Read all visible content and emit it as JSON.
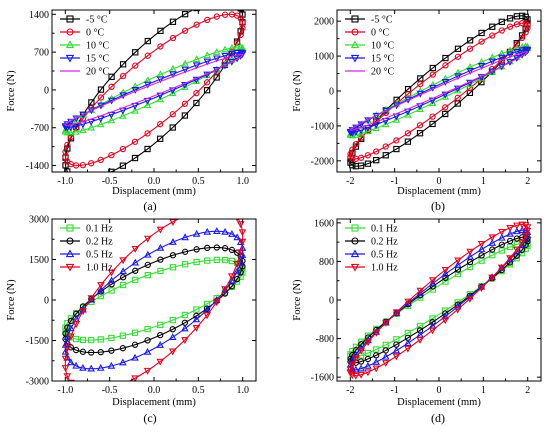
{
  "chart_data": [
    {
      "panel": "a",
      "caption": "(a)",
      "type": "line",
      "xlabel": "Displacement (mm)",
      "ylabel": "Force (N)",
      "xlim": [
        -1.15,
        1.15
      ],
      "ylim": [
        -1520,
        1480
      ],
      "xticks": [
        -1.0,
        -0.5,
        0.0,
        0.5,
        1.0
      ],
      "xtick_labels": [
        "-1.0",
        "-0.5",
        "0.0",
        "0.5",
        "1.0"
      ],
      "yticks": [
        -1400,
        -700,
        0,
        700,
        1400
      ],
      "ytick_labels": [
        "-1400",
        "-700",
        "0",
        "700",
        "1400"
      ],
      "grid": false,
      "legend": "top-left",
      "series": [
        {
          "name": "-5 °C",
          "color": "#000000",
          "marker": "square",
          "amplitude": 1.0,
          "peak_force": 1330,
          "width_force": 1000
        },
        {
          "name": "0 °C",
          "color": "#e8001c",
          "marker": "circle",
          "amplitude": 1.0,
          "peak_force": 1200,
          "width_force": 720
        },
        {
          "name": "10 °C",
          "color": "#33dd33",
          "marker": "triangle-up",
          "amplitude": 1.0,
          "peak_force": 760,
          "width_force": 230
        },
        {
          "name": "15 °C",
          "color": "#1a1aee",
          "marker": "triangle-down",
          "amplitude": 1.0,
          "peak_force": 680,
          "width_force": 150
        },
        {
          "name": "20 °C",
          "color": "#dd22dd",
          "marker": "line",
          "amplitude": 1.0,
          "peak_force": 650,
          "width_force": 110
        }
      ]
    },
    {
      "panel": "b",
      "caption": "(b)",
      "type": "line",
      "xlabel": "Displacement (mm)",
      "ylabel": "Force (N)",
      "xlim": [
        -2.3,
        2.3
      ],
      "ylim": [
        -2320,
        2320
      ],
      "xticks": [
        -2,
        -1,
        0,
        1,
        2
      ],
      "xtick_labels": [
        "-2",
        "-1",
        "0",
        "1",
        "2"
      ],
      "yticks": [
        -2000,
        -1000,
        0,
        1000,
        2000
      ],
      "ytick_labels": [
        "-2000",
        "-1000",
        "0",
        "1000",
        "2000"
      ],
      "grid": false,
      "legend": "top-left",
      "series": [
        {
          "name": "-5 °C",
          "color": "#000000",
          "marker": "square",
          "amplitude": 2.0,
          "peak_force": 2000,
          "width_force": 800
        },
        {
          "name": "0 °C",
          "color": "#e8001c",
          "marker": "circle",
          "amplitude": 2.0,
          "peak_force": 1850,
          "width_force": 600
        },
        {
          "name": "10 °C",
          "color": "#33dd33",
          "marker": "triangle-up",
          "amplitude": 2.0,
          "peak_force": 1250,
          "width_force": 260
        },
        {
          "name": "15 °C",
          "color": "#1a1aee",
          "marker": "triangle-down",
          "amplitude": 2.0,
          "peak_force": 1180,
          "width_force": 180
        },
        {
          "name": "20 °C",
          "color": "#dd22dd",
          "marker": "line",
          "amplitude": 2.0,
          "peak_force": 1120,
          "width_force": 130
        }
      ]
    },
    {
      "panel": "c",
      "caption": "(c)",
      "type": "line",
      "xlabel": "Displacement (mm)",
      "ylabel": "Force (N)",
      "xlim": [
        -1.15,
        1.15
      ],
      "ylim": [
        -3000,
        3000
      ],
      "xticks": [
        -1.0,
        -0.5,
        0.0,
        0.5,
        1.0
      ],
      "xtick_labels": [
        "-1.0",
        "-0.5",
        "0.0",
        "0.5",
        "1.0"
      ],
      "yticks": [
        -3000,
        -1500,
        0,
        1500,
        3000
      ],
      "ytick_labels": [
        "-3000",
        "-1500",
        "0",
        "1500",
        "3000"
      ],
      "minor_yticks": [
        -2250,
        -750,
        750,
        2250
      ],
      "grid": false,
      "legend": "top-left",
      "series": [
        {
          "name": "0.1 Hz",
          "color": "#33dd33",
          "marker": "square",
          "amplitude": 1.0,
          "peak_force": 1100,
          "width_force": 1000
        },
        {
          "name": "0.2 Hz",
          "color": "#000000",
          "marker": "circle",
          "amplitude": 1.0,
          "peak_force": 1350,
          "width_force": 1400
        },
        {
          "name": "0.5 Hz",
          "color": "#1a1aee",
          "marker": "triangle-up",
          "amplitude": 1.0,
          "peak_force": 1800,
          "width_force": 1800
        },
        {
          "name": "1.0 Hz",
          "color": "#e8001c",
          "marker": "triangle-down",
          "amplitude": 1.0,
          "peak_force": 2350,
          "width_force": 2450
        }
      ]
    },
    {
      "panel": "d",
      "caption": "(d)",
      "type": "line",
      "xlabel": "Displacement (mm)",
      "ylabel": "Force (N)",
      "xlim": [
        -2.3,
        2.3
      ],
      "ylim": [
        -1680,
        1680
      ],
      "xticks": [
        -2,
        -1,
        0,
        1,
        2
      ],
      "xtick_labels": [
        "-2",
        "-1",
        "0",
        "1",
        "2"
      ],
      "yticks": [
        -1600,
        -800,
        0,
        800,
        1600
      ],
      "ytick_labels": [
        "-1600",
        "-800",
        "0",
        "800",
        "1600"
      ],
      "minor_yticks": [
        -1200,
        -400,
        400,
        1200
      ],
      "grid": false,
      "legend": "top-left",
      "series": [
        {
          "name": "0.1  Hz",
          "color": "#33dd33",
          "marker": "square",
          "amplitude": 2.0,
          "peak_force": 1150,
          "width_force": 300
        },
        {
          "name": "0.2  Hz",
          "color": "#000000",
          "marker": "circle",
          "amplitude": 2.0,
          "peak_force": 1250,
          "width_force": 370
        },
        {
          "name": "0.5  Hz",
          "color": "#1a1aee",
          "marker": "triangle-up",
          "amplitude": 2.0,
          "peak_force": 1380,
          "width_force": 440
        },
        {
          "name": "1.0  Hz",
          "color": "#e8001c",
          "marker": "triangle-down",
          "amplitude": 2.0,
          "peak_force": 1480,
          "width_force": 520
        }
      ]
    }
  ]
}
